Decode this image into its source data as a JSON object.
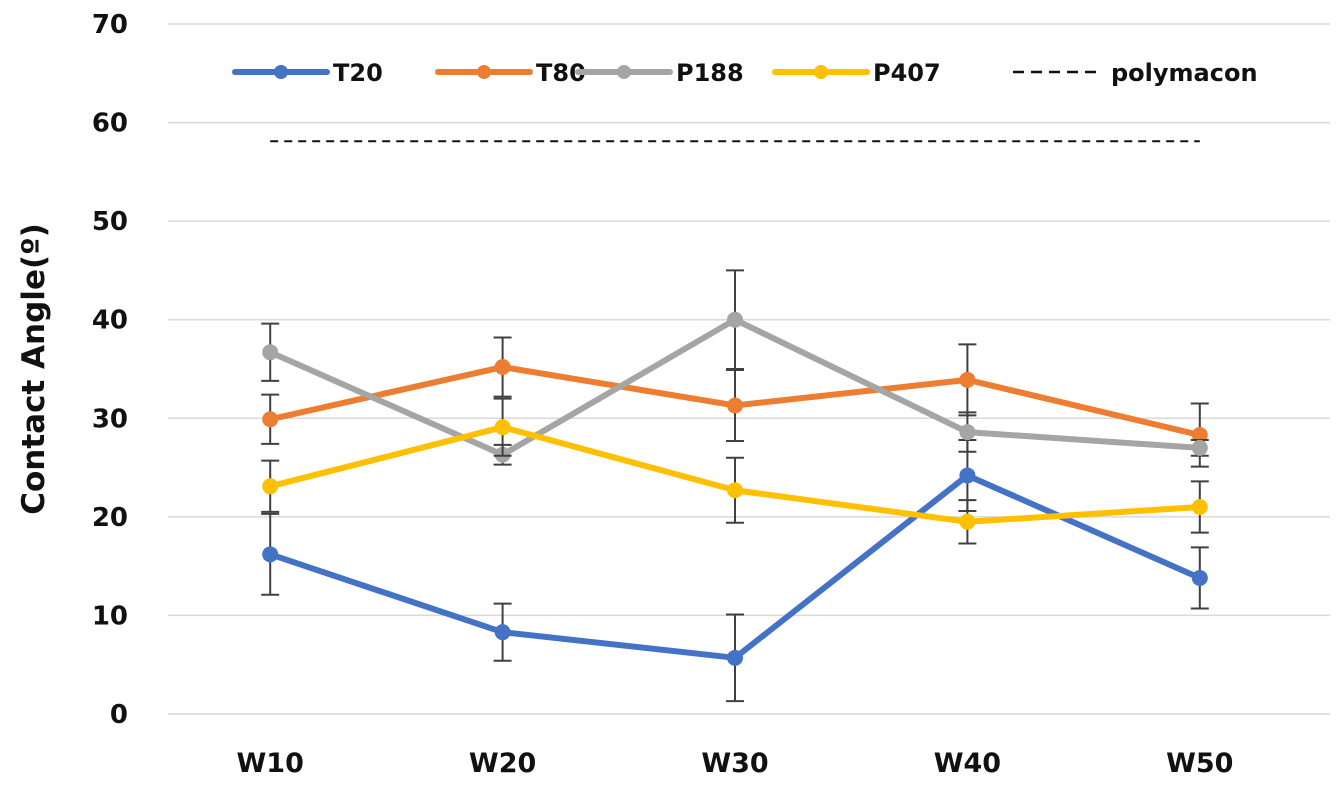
{
  "chart_data": {
    "type": "line",
    "title": "",
    "xlabel": "",
    "ylabel": "Contact Angle(º)",
    "categories": [
      "W10",
      "W20",
      "W30",
      "W40",
      "W50"
    ],
    "ylim": [
      0,
      70
    ],
    "yticks": [
      0,
      10,
      20,
      30,
      40,
      50,
      60,
      70
    ],
    "ytick_labels": [
      "0",
      "10",
      "20",
      "30",
      "40",
      "50",
      "60",
      "70"
    ],
    "grid": true,
    "legend_position": "top",
    "series": [
      {
        "name": "T20",
        "color": "#4472C4",
        "values": [
          16.2,
          8.3,
          5.7,
          24.2,
          13.8
        ],
        "errors": [
          4.1,
          2.9,
          4.4,
          3.6,
          3.1
        ]
      },
      {
        "name": "T80",
        "color": "#ED7D31",
        "values": [
          29.9,
          35.2,
          31.3,
          33.9,
          28.3
        ],
        "errors": [
          2.5,
          3.0,
          3.6,
          3.6,
          3.2
        ]
      },
      {
        "name": "P188",
        "color": "#A5A5A5",
        "values": [
          36.7,
          26.3,
          40.0,
          28.6,
          27.0
        ],
        "errors": [
          2.9,
          1.0,
          5.0,
          2.0,
          0.8
        ]
      },
      {
        "name": "P407",
        "color": "#FFC000",
        "values": [
          23.1,
          29.1,
          22.7,
          19.5,
          21.0
        ],
        "errors": [
          2.6,
          2.9,
          3.3,
          2.2,
          2.6
        ]
      }
    ],
    "reference_lines": [
      {
        "name": "polymacon",
        "value": 58.1,
        "color": "#111111",
        "style": "dashed"
      }
    ]
  }
}
